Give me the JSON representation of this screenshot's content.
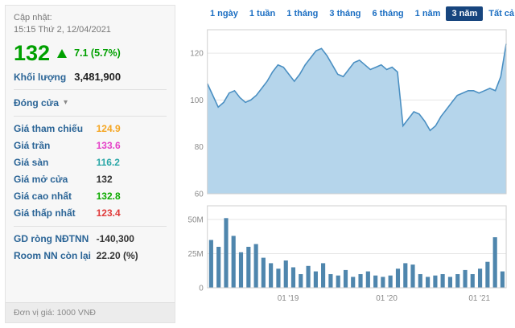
{
  "panel": {
    "update_label": "Cập nhật:",
    "update_time": "15:15 Thứ 2, 12/04/2021",
    "price": "132",
    "change": "7.1 (5.7%)",
    "volume_label": "Khối lượng",
    "volume_value": "3,481,900",
    "close_select": "Đóng cửa",
    "price_rows": [
      {
        "label": "Giá tham chiếu",
        "value": "124.9",
        "color": "#f5a623"
      },
      {
        "label": "Giá trần",
        "value": "133.6",
        "color": "#e542c8"
      },
      {
        "label": "Giá sàn",
        "value": "116.2",
        "color": "#2aa7a7"
      },
      {
        "label": "Giá mở cửa",
        "value": "132",
        "color": "#333333"
      },
      {
        "label": "Giá cao nhất",
        "value": "132.8",
        "color": "#0daa00"
      },
      {
        "label": "Giá thấp nhất",
        "value": "123.4",
        "color": "#e03a3a"
      }
    ],
    "foreign_rows": [
      {
        "label": "GD ròng NĐTNN",
        "value": "-140,300",
        "color": "#333333"
      },
      {
        "label": "Room NN còn lại",
        "value": "22.20 (%)",
        "color": "#333333"
      }
    ],
    "footer": "Đơn vị giá: 1000 VNĐ"
  },
  "tabs": {
    "items": [
      "1 ngày",
      "1 tuần",
      "1 tháng",
      "3 tháng",
      "6 tháng",
      "1 năm",
      "3 năm",
      "Tất cả"
    ],
    "active_index": 6,
    "active_bg": "#17457e",
    "link_color": "#1b6ec2"
  },
  "chart_data": [
    {
      "type": "area",
      "title": "Price history (1000 VND), 3-year range",
      "values": [
        107,
        102,
        97,
        99,
        103,
        104,
        101,
        99,
        100,
        102,
        105,
        108,
        112,
        115,
        114,
        111,
        108,
        111,
        115,
        118,
        121,
        122,
        119,
        115,
        111,
        110,
        113,
        116,
        117,
        115,
        113,
        114,
        115,
        113,
        114,
        112,
        89,
        92,
        95,
        94,
        91,
        87,
        89,
        93,
        96,
        99,
        102,
        103,
        104,
        104,
        103,
        104,
        105,
        104,
        110,
        124
      ],
      "ylim": [
        60,
        130
      ],
      "yticks": [
        {
          "v": 120,
          "label": "120"
        },
        {
          "v": 100,
          "label": "100"
        },
        {
          "v": 80,
          "label": "80"
        },
        {
          "v": 60,
          "label": "60"
        }
      ],
      "line_color": "#4a8fc2",
      "fill_color": "#b5d5eb"
    },
    {
      "type": "bar",
      "title": "Volume (shares)",
      "values": [
        35,
        30,
        51,
        38,
        26,
        30,
        32,
        22,
        18,
        14,
        20,
        15,
        10,
        16,
        12,
        18,
        10,
        9,
        13,
        8,
        10,
        12,
        9,
        8,
        9,
        14,
        18,
        17,
        10,
        8,
        9,
        10,
        8,
        10,
        13,
        10,
        14,
        19,
        37,
        12
      ],
      "unit": "M",
      "ylim": [
        0,
        60
      ],
      "yticks": [
        {
          "v": 50,
          "label": "50M"
        },
        {
          "v": 25,
          "label": "25M"
        },
        {
          "v": 0,
          "label": "0"
        }
      ],
      "xticks": [
        {
          "pos": 0.27,
          "label": "01 '19"
        },
        {
          "pos": 0.6,
          "label": "01 '20"
        },
        {
          "pos": 0.91,
          "label": "01 '21"
        }
      ],
      "bar_color": "#4f86ad"
    }
  ]
}
